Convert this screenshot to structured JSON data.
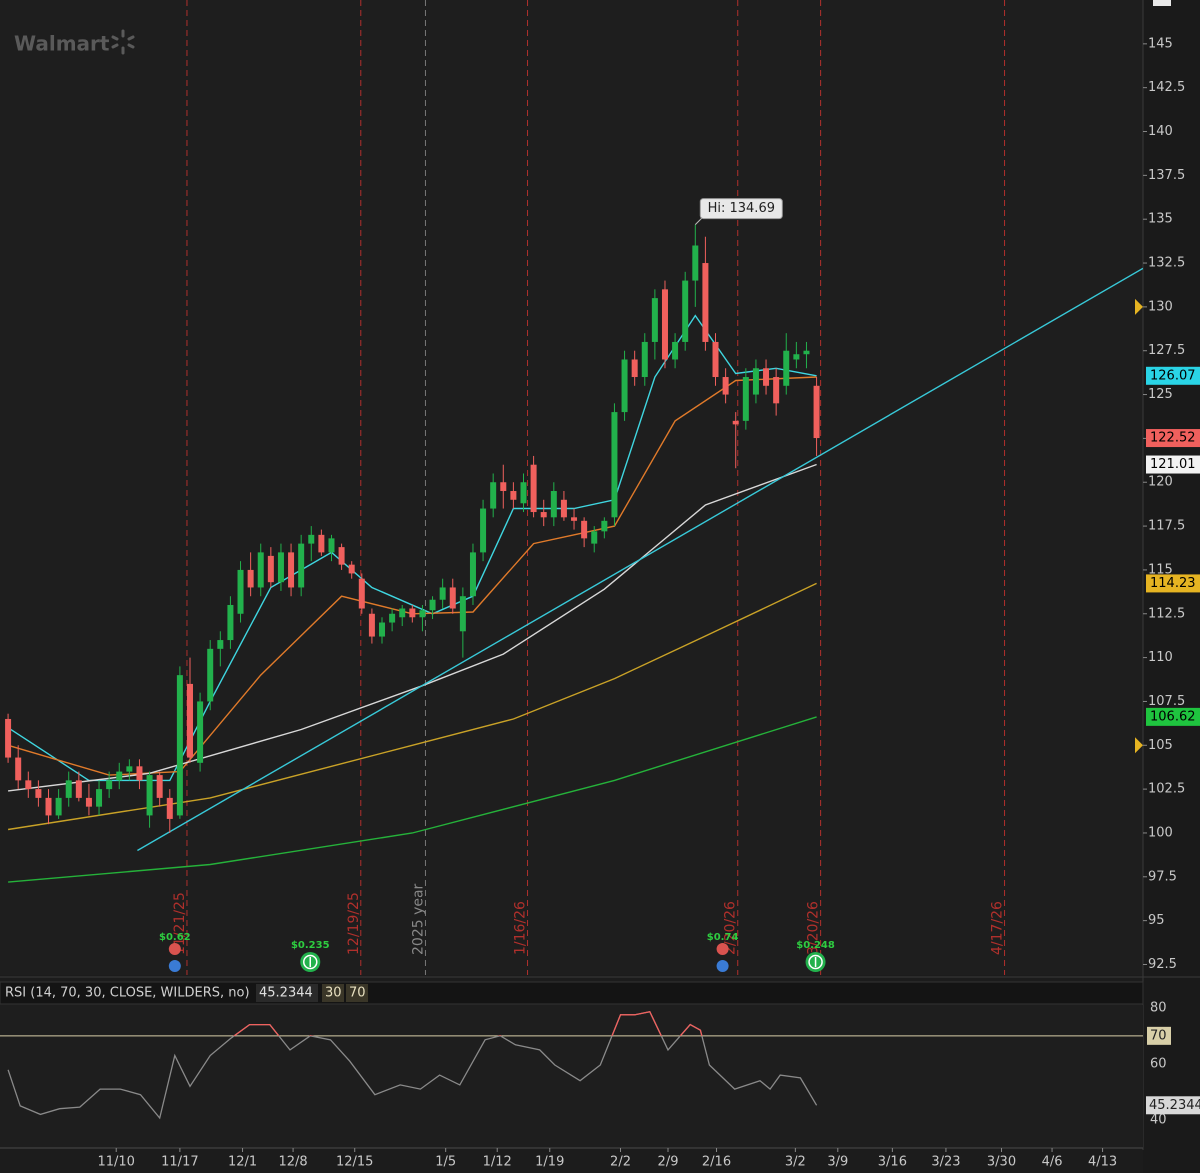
{
  "symbol_name": "Walmart",
  "chart_data": [
    {
      "type": "candlestick",
      "xlim": [
        -0.8,
        112.3
      ],
      "ylim": [
        91.9,
        147.5
      ],
      "yticks": [
        92.5,
        95,
        97.5,
        100,
        102.5,
        105,
        107.5,
        110,
        112.5,
        115,
        117.5,
        120,
        122.5,
        125,
        127.5,
        130,
        132.5,
        135,
        137.5,
        140,
        142.5,
        145
      ],
      "xticks": [
        {
          "value": 10.7,
          "label": "11/10"
        },
        {
          "value": 17.0,
          "label": "11/17"
        },
        {
          "value": 23.2,
          "label": "12/1"
        },
        {
          "value": 28.2,
          "label": "12/8"
        },
        {
          "value": 34.3,
          "label": "12/15"
        },
        {
          "value": 43.3,
          "label": "1/5"
        },
        {
          "value": 48.4,
          "label": "1/12"
        },
        {
          "value": 53.6,
          "label": "1/19"
        },
        {
          "value": 60.6,
          "label": "2/2"
        },
        {
          "value": 65.3,
          "label": "2/9"
        },
        {
          "value": 70.1,
          "label": "2/16"
        },
        {
          "value": 77.9,
          "label": "3/2"
        },
        {
          "value": 82.1,
          "label": "3/9"
        },
        {
          "value": 87.5,
          "label": "3/16"
        },
        {
          "value": 92.8,
          "label": "3/23"
        },
        {
          "value": 98.3,
          "label": "3/30"
        },
        {
          "value": 103.3,
          "label": "4/6"
        },
        {
          "value": 108.3,
          "label": "4/13"
        }
      ],
      "up_color": "#22b14c",
      "down_color": "#f0605d",
      "open": [
        106.5,
        104.3,
        103,
        102.5,
        102,
        101,
        102,
        103,
        102,
        101.5,
        102.5,
        103,
        103.5,
        103.8,
        101,
        103.3,
        102,
        101,
        108.5,
        104,
        107.5,
        110.5,
        111,
        112.5,
        115,
        114,
        115.8,
        114.3,
        116,
        114,
        116.5,
        117,
        116,
        116.3,
        115.3,
        114.5,
        112.5,
        111.2,
        112,
        112.3,
        112.8,
        112.3,
        112.7,
        113.3,
        114,
        111.5,
        113.5,
        116,
        118.5,
        120,
        119.5,
        118.8,
        121,
        118.3,
        118,
        119,
        118,
        117.8,
        116.5,
        117.2,
        118,
        124,
        127,
        126,
        128,
        131,
        127,
        128,
        131.5,
        132.5,
        128,
        126,
        123.5,
        123.5,
        125,
        126.5,
        126,
        125.5,
        127,
        127.3,
        125.5
      ],
      "high": [
        106.8,
        105,
        103.5,
        103,
        102.5,
        102.5,
        103.5,
        103.5,
        102.8,
        103,
        103.5,
        104,
        104.2,
        104.2,
        103.5,
        103.5,
        102.5,
        109.5,
        110,
        108,
        111,
        111.5,
        113.5,
        115.5,
        116,
        116.5,
        116.3,
        116.5,
        116.5,
        117,
        117.5,
        117.3,
        117,
        116.5,
        115.5,
        114.8,
        112.8,
        112.3,
        112.8,
        113,
        113,
        113,
        113.5,
        114.5,
        114.5,
        114,
        116.5,
        119,
        120.5,
        121,
        120,
        120.5,
        121.5,
        119,
        120,
        119.5,
        118.5,
        118,
        117.5,
        118,
        124.5,
        127.5,
        127.5,
        128.5,
        131,
        131.5,
        128.5,
        132,
        134.69,
        134,
        128.5,
        126.5,
        124,
        126.5,
        127,
        127,
        126.5,
        128.5,
        128,
        128,
        126
      ],
      "low": [
        104,
        102.5,
        102,
        101.5,
        100.5,
        100.8,
        101.5,
        101.8,
        101,
        101,
        102,
        102.5,
        103,
        102.5,
        100.3,
        101.5,
        100,
        100.8,
        104,
        103.5,
        107,
        109.5,
        110.5,
        112,
        113.5,
        113.5,
        114,
        113.8,
        113.5,
        113.5,
        115.5,
        115.8,
        115.5,
        115,
        114.5,
        112.5,
        110.8,
        110.8,
        111.5,
        111.8,
        112,
        111.5,
        112.2,
        112.8,
        112.5,
        110,
        113,
        115.5,
        118,
        118.5,
        118.5,
        118.3,
        118,
        117.5,
        117.5,
        117.8,
        117.3,
        116.3,
        116,
        116.8,
        117.5,
        123.5,
        125.5,
        125.5,
        127,
        126.5,
        126.5,
        127.5,
        130,
        127.5,
        125.5,
        124.5,
        120.8,
        123,
        124.5,
        125,
        123.8,
        125,
        126.5,
        126.5,
        121.5
      ],
      "close": [
        104.3,
        103,
        102.5,
        102,
        101,
        102,
        103,
        102,
        101.5,
        102.5,
        103,
        103.5,
        103.8,
        103,
        103.3,
        102,
        100.8,
        109,
        104.3,
        107.5,
        110.5,
        111,
        113,
        115,
        114,
        116,
        114.3,
        116,
        114,
        116.5,
        117,
        116,
        116.8,
        115.3,
        114.8,
        112.8,
        111.2,
        112,
        112.5,
        112.8,
        112.3,
        112.7,
        113.3,
        114,
        112.8,
        113.5,
        116,
        118.5,
        120,
        119.5,
        119,
        120,
        118.3,
        118,
        119.5,
        118,
        117.8,
        116.8,
        117.2,
        117.8,
        124,
        127,
        126,
        128,
        130.5,
        127,
        128,
        131.5,
        133.5,
        128,
        126,
        125,
        123.3,
        126,
        126.5,
        125.5,
        124.5,
        127.5,
        127.3,
        127.5,
        122.52
      ],
      "series": [
        {
          "color": "#3fd6e0",
          "x": [
            0,
            8,
            16,
            20,
            26,
            32,
            36,
            42,
            46,
            50,
            56,
            60,
            64,
            68,
            72,
            76,
            80
          ],
          "values": [
            106,
            103,
            103,
            107.5,
            114,
            116,
            114,
            112.5,
            113.5,
            118.5,
            118.5,
            119,
            126,
            129.5,
            126.2,
            126.5,
            126.07
          ]
        },
        {
          "color": "#e07a2a",
          "x": [
            0,
            10,
            17,
            25,
            33,
            40,
            46,
            52,
            60,
            66,
            72,
            80
          ],
          "values": [
            105,
            103.3,
            103.5,
            109,
            113.5,
            112.5,
            112.6,
            116.5,
            117.5,
            123.5,
            125.8,
            126
          ]
        },
        {
          "color": "#d8d8d8",
          "x": [
            0,
            14,
            29,
            41,
            49,
            59,
            69,
            80
          ],
          "values": [
            102.4,
            103.4,
            105.9,
            108.4,
            110.2,
            113.9,
            118.7,
            121.01
          ]
        },
        {
          "color": "#c9a227",
          "x": [
            0,
            20,
            40,
            50,
            60,
            70,
            80
          ],
          "values": [
            100.2,
            102,
            105,
            106.5,
            108.8,
            111.5,
            114.23
          ]
        },
        {
          "color": "#25b23a",
          "x": [
            0,
            20,
            40,
            60,
            80
          ],
          "values": [
            97.2,
            98.2,
            100,
            103,
            106.62
          ]
        },
        {
          "color": "#38c9d8",
          "x": [
            12.8,
            112.3
          ],
          "values": [
            99,
            132.2
          ]
        }
      ],
      "alert_levels": [
        130,
        105
      ],
      "annotations": [
        {
          "text": "Hi: 134.69",
          "x": 68,
          "y": 134.69
        }
      ],
      "events": [
        {
          "x": 17.7,
          "label": "11/21/25"
        },
        {
          "x": 34.9,
          "label": "12/19/25"
        },
        {
          "x": 41.3,
          "label": "2025 year"
        },
        {
          "x": 51.4,
          "label": "1/16/26"
        },
        {
          "x": 72.2,
          "label": "2/20/26"
        },
        {
          "x": 80.4,
          "label": "3/20/26"
        },
        {
          "x": 98.6,
          "label": "4/17/26"
        }
      ],
      "corporate_actions": [
        {
          "x": 16.5,
          "label": "$0.62",
          "icon": "earnings"
        },
        {
          "x": 29.9,
          "label": "$0.235",
          "icon": "dividend"
        },
        {
          "x": 70.7,
          "label": "$0.74",
          "icon": "earnings"
        },
        {
          "x": 79.9,
          "label": "$0.248",
          "icon": "dividend"
        }
      ]
    },
    {
      "type": "line",
      "title": "RSI (14, 70, 30, CLOSE, WILDERS, no)",
      "oversold": 30,
      "overbought": 70,
      "ylim": [
        30,
        81
      ],
      "yticks": [
        40,
        60,
        80
      ],
      "color": "#8a8a8a",
      "overbought_color": "#f0605d",
      "x": [
        0,
        1.2,
        3.2,
        5.1,
        7.1,
        9.1,
        11.1,
        13.1,
        15.0,
        16.5,
        18.0,
        20.0,
        22.0,
        23.9,
        25.9,
        27.9,
        29.9,
        31.9,
        33.8,
        36.3,
        38.8,
        40.8,
        42.7,
        44.7,
        47.2,
        48.7,
        50.2,
        52.6,
        54.1,
        56.6,
        58.6,
        60.6,
        62.0,
        63.5,
        65.3,
        67.5,
        68.5,
        69.4,
        71.9,
        74.4,
        75.4,
        76.4,
        78.4,
        80.0
      ],
      "values": [
        57.9,
        45,
        42,
        44,
        44.6,
        51,
        51,
        49,
        40.7,
        63,
        52,
        63,
        69,
        74,
        74,
        65,
        70,
        68.6,
        61,
        49,
        52.5,
        51,
        56,
        52.5,
        68.6,
        70,
        66.8,
        65,
        59.6,
        54,
        59.6,
        77.5,
        77.5,
        78.6,
        65,
        74,
        72,
        59.6,
        51,
        54,
        51,
        56,
        55,
        45.2344
      ]
    }
  ]
}
